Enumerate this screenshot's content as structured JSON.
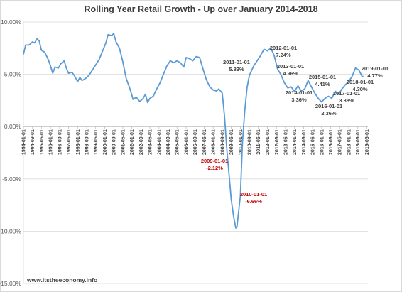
{
  "footer_text": "www.itstheeconomy.info",
  "colors": {
    "line": "#5b9bd5",
    "annotation": "#404040",
    "annotation_negative": "#c00000",
    "grid": "#d9d9d9"
  },
  "chart_data": {
    "type": "line",
    "title": "Rolling Year Retail Growth - Up over January 2014-2018",
    "xlabel": "",
    "ylabel": "",
    "x_range": [
      "1994-01-01",
      "2019-06-01"
    ],
    "ylim": [
      -15,
      10
    ],
    "y_ticks": [
      "10.00%",
      "5.00%",
      "0.00%",
      "-5.00%",
      "-10.00%",
      "-15.00%"
    ],
    "x_ticks": [
      "1994-01-01",
      "1994-09-01",
      "1995-05-01",
      "1996-01-01",
      "1996-09-01",
      "1997-05-01",
      "1998-01-01",
      "1998-09-01",
      "1999-05-01",
      "2000-01-01",
      "2000-09-01",
      "2001-05-01",
      "2002-01-01",
      "2002-09-01",
      "2003-05-01",
      "2004-01-01",
      "2004-09-01",
      "2005-05-01",
      "2006-01-01",
      "2006-09-01",
      "2007-05-01",
      "2008-01-01",
      "2008-09-01",
      "2009-05-01",
      "2010-01-01",
      "2010-09-01",
      "2011-05-01",
      "2012-01-01",
      "2012-09-01",
      "2013-05-01",
      "2014-01-01",
      "2014-09-01",
      "2015-05-01",
      "2016-01-01",
      "2016-09-01",
      "2017-05-01",
      "2018-01-01",
      "2018-09-01",
      "2019-05-01"
    ],
    "grid": true,
    "legend": "none",
    "series": [
      {
        "points": [
          [
            "1994-01-01",
            6.9
          ],
          [
            "1994-03-01",
            7.8
          ],
          [
            "1994-06-01",
            7.8
          ],
          [
            "1994-09-01",
            8.1
          ],
          [
            "1994-11-01",
            8.0
          ],
          [
            "1995-01-01",
            8.4
          ],
          [
            "1995-03-01",
            8.2
          ],
          [
            "1995-05-01",
            7.3
          ],
          [
            "1995-08-01",
            7.1
          ],
          [
            "1995-11-01",
            6.4
          ],
          [
            "1996-01-01",
            5.8
          ],
          [
            "1996-03-01",
            5.1
          ],
          [
            "1996-05-01",
            5.7
          ],
          [
            "1996-08-01",
            5.6
          ],
          [
            "1996-10-01",
            6.0
          ],
          [
            "1997-01-01",
            6.3
          ],
          [
            "1997-03-01",
            5.6
          ],
          [
            "1997-05-01",
            5.1
          ],
          [
            "1997-08-01",
            5.2
          ],
          [
            "1997-10-01",
            4.9
          ],
          [
            "1998-01-01",
            4.3
          ],
          [
            "1998-03-01",
            4.7
          ],
          [
            "1998-05-01",
            4.4
          ],
          [
            "1998-08-01",
            4.6
          ],
          [
            "1998-11-01",
            4.9
          ],
          [
            "1999-02-01",
            5.4
          ],
          [
            "1999-05-01",
            5.9
          ],
          [
            "1999-08-01",
            6.4
          ],
          [
            "1999-11-01",
            7.2
          ],
          [
            "2000-02-01",
            8.0
          ],
          [
            "2000-04-01",
            8.8
          ],
          [
            "2000-07-01",
            8.7
          ],
          [
            "2000-09-01",
            8.9
          ],
          [
            "2000-11-01",
            8.1
          ],
          [
            "2001-02-01",
            7.5
          ],
          [
            "2001-05-01",
            6.2
          ],
          [
            "2001-08-01",
            4.6
          ],
          [
            "2001-11-01",
            3.7
          ],
          [
            "2002-01-01",
            3.0
          ],
          [
            "2002-02-01",
            2.6
          ],
          [
            "2002-05-01",
            2.8
          ],
          [
            "2002-08-01",
            2.4
          ],
          [
            "2002-11-01",
            2.7
          ],
          [
            "2003-01-01",
            3.1
          ],
          [
            "2003-03-01",
            2.3
          ],
          [
            "2003-05-01",
            2.7
          ],
          [
            "2003-08-01",
            2.9
          ],
          [
            "2003-11-01",
            3.6
          ],
          [
            "2004-02-01",
            4.2
          ],
          [
            "2004-05-01",
            5.0
          ],
          [
            "2004-08-01",
            5.8
          ],
          [
            "2004-11-01",
            6.3
          ],
          [
            "2005-02-01",
            6.1
          ],
          [
            "2005-05-01",
            6.3
          ],
          [
            "2005-08-01",
            6.1
          ],
          [
            "2005-11-01",
            5.7
          ],
          [
            "2006-01-01",
            6.6
          ],
          [
            "2006-04-01",
            6.5
          ],
          [
            "2006-07-01",
            6.3
          ],
          [
            "2006-10-01",
            6.7
          ],
          [
            "2007-01-01",
            6.6
          ],
          [
            "2007-04-01",
            5.5
          ],
          [
            "2007-07-01",
            4.5
          ],
          [
            "2007-10-01",
            3.8
          ],
          [
            "2008-01-01",
            3.5
          ],
          [
            "2008-04-01",
            3.4
          ],
          [
            "2008-06-01",
            3.6
          ],
          [
            "2008-09-01",
            3.2
          ],
          [
            "2008-11-01",
            1.0
          ],
          [
            "2009-01-01",
            -2.12
          ],
          [
            "2009-03-01",
            -4.5
          ],
          [
            "2009-05-01",
            -7.0
          ],
          [
            "2009-07-01",
            -8.5
          ],
          [
            "2009-09-01",
            -9.7
          ],
          [
            "2009-10-01",
            -9.6
          ],
          [
            "2010-01-01",
            -6.66
          ],
          [
            "2010-03-01",
            -1.5
          ],
          [
            "2010-05-01",
            1.5
          ],
          [
            "2010-07-01",
            3.7
          ],
          [
            "2010-09-01",
            4.9
          ],
          [
            "2011-01-01",
            5.83
          ],
          [
            "2011-04-01",
            6.3
          ],
          [
            "2011-07-01",
            6.8
          ],
          [
            "2011-10-01",
            7.4
          ],
          [
            "2012-01-01",
            7.24
          ],
          [
            "2012-04-01",
            7.5
          ],
          [
            "2012-07-01",
            6.8
          ],
          [
            "2012-10-01",
            5.5
          ],
          [
            "2013-01-01",
            4.96
          ],
          [
            "2013-04-01",
            4.2
          ],
          [
            "2013-07-01",
            3.7
          ],
          [
            "2013-10-01",
            3.8
          ],
          [
            "2014-01-01",
            3.36
          ],
          [
            "2014-04-01",
            3.9
          ],
          [
            "2014-07-01",
            3.4
          ],
          [
            "2014-10-01",
            3.6
          ],
          [
            "2015-01-01",
            4.41
          ],
          [
            "2015-04-01",
            3.8
          ],
          [
            "2015-07-01",
            3.2
          ],
          [
            "2015-10-01",
            2.7
          ],
          [
            "2016-01-01",
            2.36
          ],
          [
            "2016-04-01",
            2.7
          ],
          [
            "2016-07-01",
            2.9
          ],
          [
            "2016-10-01",
            2.7
          ],
          [
            "2017-01-01",
            3.38
          ],
          [
            "2017-04-01",
            3.1
          ],
          [
            "2017-07-01",
            3.6
          ],
          [
            "2017-10-01",
            4.0
          ],
          [
            "2018-01-01",
            4.3
          ],
          [
            "2018-04-01",
            4.8
          ],
          [
            "2018-07-01",
            5.6
          ],
          [
            "2018-10-01",
            5.4
          ],
          [
            "2019-01-01",
            4.77
          ],
          [
            "2019-02-01",
            4.8
          ]
        ]
      }
    ],
    "annotations": [
      {
        "date": "2009-01-01",
        "value": "-2.12%",
        "negative": true
      },
      {
        "date": "2010-01-01",
        "value": "-6.66%",
        "negative": true
      },
      {
        "date": "2011-01-01",
        "value": "5.83%"
      },
      {
        "date": "2012-01-01",
        "value": "7.24%"
      },
      {
        "date": "2013-01-01",
        "value": "4.96%"
      },
      {
        "date": "2014-01-01",
        "value": "3.36%"
      },
      {
        "date": "2015-01-01",
        "value": "4.41%"
      },
      {
        "date": "2016-01-01",
        "value": "2.36%"
      },
      {
        "date": "2017-01-01",
        "value": "3.38%"
      },
      {
        "date": "2018-01-01",
        "value": "4.30%"
      },
      {
        "date": "2019-01-01",
        "value": "4.77%"
      }
    ]
  }
}
